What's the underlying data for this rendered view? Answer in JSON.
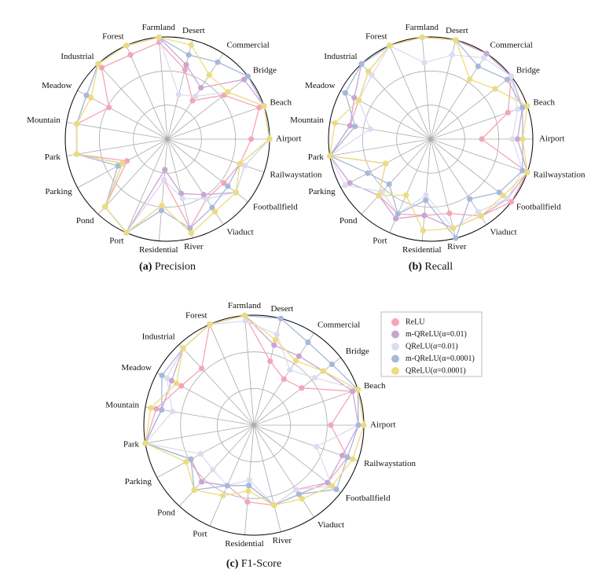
{
  "chart_data": [
    {
      "type": "radar",
      "caption_label": "(a)",
      "caption": "Precision",
      "rlim": [
        0,
        1
      ],
      "categories": [
        "Airport",
        "Beach",
        "Bridge",
        "Commercial",
        "Desert",
        "Farmland",
        "Forest",
        "Industrial",
        "Meadow",
        "Mountain",
        "Park",
        "Parking",
        "Pond",
        "Port",
        "Residential",
        "River",
        "Viaduct",
        "Footballfield",
        "Railwaystation"
      ],
      "series": [
        {
          "color": "#f4a6b6",
          "values": [
            0.82,
            0.95,
            0.7,
            0.45,
            0.7,
            0.95,
            0.9,
            0.95,
            0.65,
            0.9,
            0.9,
            0.45,
            0.9,
            1,
            0.4,
            0.9,
            0.7,
            0.7,
            0.75
          ]
        },
        {
          "color": "#c9a6d2",
          "values": [
            1,
            1,
            0.95,
            0.6,
            0.75,
            1,
            1,
            1,
            0.9,
            0.9,
            0.9,
            0.5,
            0.9,
            1,
            0.3,
            0.55,
            0.65,
            0.85,
            0.8
          ]
        },
        {
          "color": "#dcdcf2",
          "values": [
            1,
            1,
            0.75,
            0.5,
            0.45,
            1,
            1,
            1,
            0.9,
            0.9,
            0.9,
            0.5,
            0.9,
            1,
            0.4,
            0.6,
            0.7,
            0.85,
            0.8
          ]
        },
        {
          "color": "#a7b9d9",
          "values": [
            1,
            1,
            1,
            0.9,
            0.85,
            1,
            1,
            1,
            0.9,
            0.9,
            0.9,
            0.55,
            0.9,
            1,
            0.7,
            0.9,
            0.8,
            0.75,
            0.75
          ]
        },
        {
          "color": "#ecdc7e",
          "values": [
            1,
            1,
            0.75,
            0.75,
            0.95,
            1,
            1,
            1,
            0.85,
            0.9,
            0.9,
            0.5,
            0.9,
            1,
            0.65,
            0.95,
            0.85,
            0.85,
            0.75
          ]
        }
      ]
    },
    {
      "type": "radar",
      "caption_label": "(b)",
      "caption": "Recall",
      "rlim": [
        0,
        1
      ],
      "categories": [
        "Airport",
        "Beach",
        "Bridge",
        "Commercial",
        "Desert",
        "Farmland",
        "Forest",
        "Industrial",
        "Meadow",
        "Mountain",
        "Park",
        "Parking",
        "Pond",
        "Port",
        "Residential",
        "River",
        "Viaduct",
        "Footballfield",
        "Railwaystation"
      ],
      "series": [
        {
          "color": "#f4a6b6",
          "values": [
            0.5,
            0.8,
            1,
            1,
            1,
            1,
            1,
            0.9,
            0.8,
            0.8,
            1,
            0.5,
            0.75,
            0.8,
            0.75,
            0.75,
            0.9,
            1,
            1
          ]
        },
        {
          "color": "#c9a6d2",
          "values": [
            0.85,
            0.95,
            1,
            1,
            1,
            1,
            1,
            1,
            0.85,
            0.8,
            1,
            0.9,
            0.75,
            0.85,
            0.75,
            0.9,
            0.9,
            0.95,
            1
          ]
        },
        {
          "color": "#dcdcf2",
          "values": [
            0.8,
            0.9,
            1,
            0.95,
            0.85,
            0.75,
            1,
            0.85,
            0.8,
            0.6,
            1,
            0.95,
            0.7,
            0.8,
            0.55,
            0.9,
            0.85,
            0.95,
            0.95
          ]
        },
        {
          "color": "#a7b9d9",
          "values": [
            0.9,
            0.95,
            0.95,
            0.85,
            1,
            1,
            1,
            1,
            0.95,
            0.75,
            1,
            0.7,
            0.6,
            0.8,
            0.6,
            1,
            0.7,
            0.85,
            0.95
          ]
        },
        {
          "color": "#ecdc7e",
          "values": [
            0.9,
            1,
            0.8,
            0.7,
            1,
            1,
            1,
            0.9,
            0.8,
            0.95,
            1,
            0.5,
            0.75,
            0.6,
            0.9,
            0.9,
            0.9,
            0.9,
            1
          ]
        }
      ]
    },
    {
      "type": "radar",
      "caption_label": "(c)",
      "caption": "F1-Score",
      "rlim": [
        0,
        1
      ],
      "categories": [
        "Airport",
        "Beach",
        "Bridge",
        "Commercial",
        "Desert",
        "Farmland",
        "Forest",
        "Industrial",
        "Meadow",
        "Mountain",
        "Park",
        "Parking",
        "Pond",
        "Port",
        "Residential",
        "River",
        "Viaduct",
        "Footballfield",
        "Railwaystation"
      ],
      "series": [
        {
          "name": "ReLU",
          "color": "#f4a6b6",
          "values": [
            0.7,
            0.95,
            0.55,
            0.5,
            0.6,
            1,
            1,
            0.7,
            0.75,
            0.9,
            1,
            0.65,
            0.7,
            0.6,
            0.7,
            0.75,
            0.7,
            0.85,
            0.9
          ]
        },
        {
          "name": "m-QReLU(α=0.01)",
          "color": "#c9a6d2",
          "values": [
            0.95,
            0.95,
            0.8,
            0.75,
            0.75,
            1,
            1,
            0.95,
            0.85,
            0.85,
            1,
            0.65,
            0.7,
            0.6,
            0.55,
            0.75,
            0.75,
            0.85,
            0.85
          ]
        },
        {
          "name": "QReLU(α=0.01)",
          "color": "#dcdcf2",
          "values": [
            0.95,
            1,
            0.7,
            0.6,
            0.85,
            0.95,
            1,
            0.95,
            0.9,
            0.75,
            1,
            0.55,
            0.55,
            0.6,
            0.5,
            0.75,
            0.7,
            0.9,
            0.6
          ]
        },
        {
          "name": "m-QReLU(α=0.0001)",
          "color": "#a7b9d9",
          "values": [
            0.95,
            1,
            0.9,
            0.9,
            1,
            1,
            1,
            0.95,
            0.95,
            0.85,
            1,
            0.65,
            0.8,
            0.6,
            0.55,
            0.75,
            0.75,
            0.95,
            0.9
          ]
        },
        {
          "name": "QReLU(α=0.0001)",
          "color": "#ecdc7e",
          "values": [
            1,
            1,
            0.8,
            0.7,
            0.8,
            1,
            1,
            0.95,
            0.8,
            0.95,
            1,
            0.7,
            0.8,
            0.7,
            0.6,
            0.75,
            0.8,
            0.9,
            0.95
          ]
        }
      ]
    }
  ]
}
